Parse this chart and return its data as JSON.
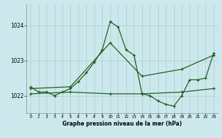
{
  "title": "Graphe pression niveau de la mer (hPa)",
  "bg_color": "#cce8ec",
  "grid_color": "#aacccc",
  "line_color": "#1a5c1a",
  "xlim": [
    -0.5,
    23.5
  ],
  "ylim": [
    1021.5,
    1024.6
  ],
  "yticks": [
    1022,
    1023,
    1024
  ],
  "xticks": [
    0,
    1,
    2,
    3,
    4,
    5,
    6,
    7,
    8,
    9,
    10,
    11,
    12,
    13,
    14,
    15,
    16,
    17,
    18,
    19,
    20,
    21,
    22,
    23
  ],
  "series1": {
    "x": [
      0,
      1,
      2,
      3,
      4,
      5,
      6,
      7,
      8,
      9,
      10,
      11,
      12,
      13,
      14,
      15,
      16,
      17,
      18,
      19,
      20,
      21,
      22,
      23
    ],
    "y": [
      1022.25,
      1022.1,
      1022.1,
      1022.0,
      1022.1,
      1022.2,
      1022.4,
      1022.65,
      1022.95,
      1023.3,
      1024.1,
      1023.95,
      1023.3,
      1023.15,
      1022.05,
      1022.0,
      1021.85,
      1021.75,
      1021.7,
      1022.0,
      1022.45,
      1022.45,
      1022.5,
      1023.2
    ]
  },
  "series2": {
    "x": [
      0,
      5,
      10,
      14,
      19,
      23
    ],
    "y": [
      1022.05,
      1022.1,
      1022.05,
      1022.05,
      1022.1,
      1022.2
    ]
  },
  "series3": {
    "x": [
      0,
      5,
      10,
      14,
      19,
      23
    ],
    "y": [
      1022.2,
      1022.25,
      1023.5,
      1022.55,
      1022.75,
      1023.15
    ]
  }
}
